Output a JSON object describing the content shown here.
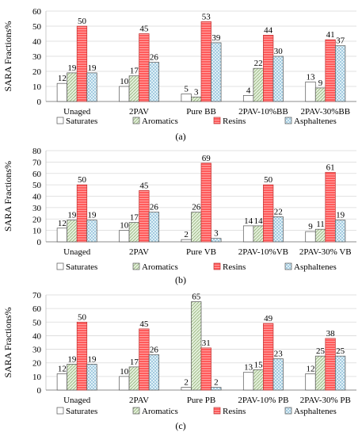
{
  "colors": {
    "saturates": "#ffffff",
    "aromatics": "#e2efd9",
    "resins": "#ff5b5b",
    "asphaltenes": "#dff0f7",
    "resins_pattern": "#ffb3b3",
    "aromatics_pattern": "#7a9a5a",
    "asphaltenes_pattern": "#6aa6c8",
    "gridline": "#d9d9d9"
  },
  "chart_data": [
    {
      "type": "bar",
      "panel_label": "(a)",
      "ylabel": "SARA Fractions%",
      "ylim": [
        0,
        60
      ],
      "yticks": [
        0,
        10,
        20,
        30,
        40,
        50,
        60
      ],
      "categories": [
        "Unaged",
        "2PAV",
        "Pure BB",
        "2PAV-10%BB",
        "2PAV-30%BB"
      ],
      "series": [
        {
          "name": "Saturates",
          "values": [
            12,
            10,
            5,
            4,
            13
          ]
        },
        {
          "name": "Aromatics",
          "values": [
            19,
            17,
            3,
            22,
            9
          ]
        },
        {
          "name": "Resins",
          "values": [
            50,
            45,
            53,
            44,
            41
          ]
        },
        {
          "name": "Asphaltenes",
          "values": [
            19,
            26,
            39,
            30,
            37
          ]
        }
      ],
      "grid": true,
      "legend": "bottom"
    },
    {
      "type": "bar",
      "panel_label": "(b)",
      "ylabel": "SARA Fractions%",
      "ylim": [
        0,
        80
      ],
      "yticks": [
        0,
        10,
        20,
        30,
        40,
        50,
        60,
        70,
        80
      ],
      "categories": [
        "Unaged",
        "2PAV",
        "Pure VB",
        "2PAV-10%VB",
        "2PAV-30% VB"
      ],
      "series": [
        {
          "name": "Saturates",
          "values": [
            12,
            10,
            2,
            14,
            9
          ]
        },
        {
          "name": "Aromatics",
          "values": [
            19,
            17,
            26,
            14,
            11
          ]
        },
        {
          "name": "Resins",
          "values": [
            50,
            45,
            69,
            50,
            61
          ]
        },
        {
          "name": "Asphaltenes",
          "values": [
            19,
            26,
            3,
            22,
            19
          ]
        }
      ],
      "grid": true,
      "legend": "bottom"
    },
    {
      "type": "bar",
      "panel_label": "(c)",
      "ylabel": "SARA Fractions%",
      "ylim": [
        0,
        70
      ],
      "yticks": [
        0,
        10,
        20,
        30,
        40,
        50,
        60,
        70
      ],
      "categories": [
        "Unaged",
        "2PAV",
        "Pure PB",
        "2PAV-10% PB",
        "2PAV-30% PB"
      ],
      "series": [
        {
          "name": "Saturates",
          "values": [
            12,
            10,
            2,
            13,
            12
          ]
        },
        {
          "name": "Aromatics",
          "values": [
            19,
            17,
            65,
            15,
            25
          ]
        },
        {
          "name": "Resins",
          "values": [
            50,
            45,
            31,
            49,
            38
          ]
        },
        {
          "name": "Asphaltenes",
          "values": [
            19,
            26,
            2,
            23,
            25
          ]
        }
      ],
      "grid": true,
      "legend": "bottom"
    }
  ]
}
